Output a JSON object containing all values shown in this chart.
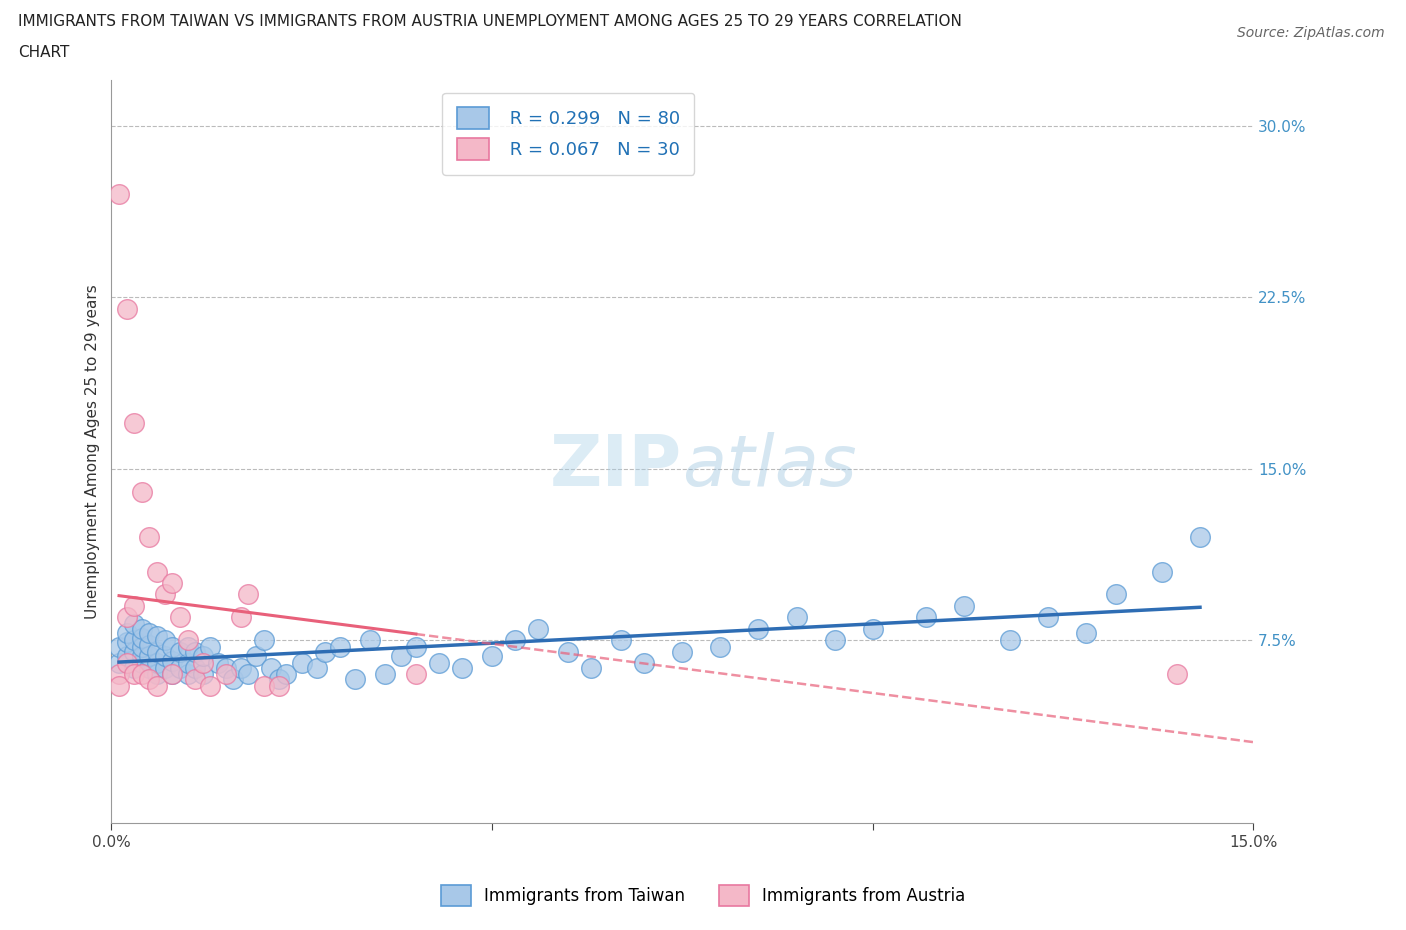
{
  "title_line1": "IMMIGRANTS FROM TAIWAN VS IMMIGRANTS FROM AUSTRIA UNEMPLOYMENT AMONG AGES 25 TO 29 YEARS CORRELATION",
  "title_line2": "CHART",
  "source_text": "Source: ZipAtlas.com",
  "ylabel": "Unemployment Among Ages 25 to 29 years",
  "xlabel_taiwan": "Immigrants from Taiwan",
  "xlabel_austria": "Immigrants from Austria",
  "watermark": "ZIPatlas",
  "taiwan_R": 0.299,
  "taiwan_N": 80,
  "austria_R": 0.067,
  "austria_N": 30,
  "xlim": [
    0.0,
    0.15
  ],
  "ylim": [
    -0.005,
    0.32
  ],
  "yticks_right": [
    0.075,
    0.15,
    0.225,
    0.3
  ],
  "ytick_labels_right": [
    "7.5%",
    "15.0%",
    "22.5%",
    "30.0%"
  ],
  "taiwan_color": "#a8c8e8",
  "taiwan_edge": "#5b9bd5",
  "austria_color": "#f4b8c8",
  "austria_edge": "#e878a0",
  "taiwan_line_color": "#2e6db4",
  "austria_line_color": "#e8607a",
  "background_color": "#ffffff",
  "taiwan_x": [
    0.001,
    0.001,
    0.002,
    0.002,
    0.002,
    0.003,
    0.003,
    0.003,
    0.003,
    0.004,
    0.004,
    0.004,
    0.004,
    0.004,
    0.005,
    0.005,
    0.005,
    0.005,
    0.006,
    0.006,
    0.006,
    0.006,
    0.007,
    0.007,
    0.007,
    0.008,
    0.008,
    0.008,
    0.009,
    0.009,
    0.01,
    0.01,
    0.01,
    0.011,
    0.011,
    0.012,
    0.012,
    0.013,
    0.014,
    0.015,
    0.016,
    0.017,
    0.018,
    0.019,
    0.02,
    0.021,
    0.022,
    0.023,
    0.025,
    0.027,
    0.028,
    0.03,
    0.032,
    0.034,
    0.036,
    0.038,
    0.04,
    0.043,
    0.046,
    0.05,
    0.053,
    0.056,
    0.06,
    0.063,
    0.067,
    0.07,
    0.075,
    0.08,
    0.085,
    0.09,
    0.095,
    0.1,
    0.107,
    0.112,
    0.118,
    0.123,
    0.128,
    0.132,
    0.138,
    0.143
  ],
  "taiwan_y": [
    0.065,
    0.072,
    0.068,
    0.074,
    0.078,
    0.063,
    0.07,
    0.075,
    0.082,
    0.065,
    0.068,
    0.072,
    0.076,
    0.08,
    0.063,
    0.068,
    0.073,
    0.078,
    0.06,
    0.065,
    0.07,
    0.077,
    0.063,
    0.068,
    0.075,
    0.06,
    0.066,
    0.072,
    0.063,
    0.07,
    0.06,
    0.065,
    0.072,
    0.063,
    0.07,
    0.06,
    0.068,
    0.072,
    0.065,
    0.063,
    0.058,
    0.063,
    0.06,
    0.068,
    0.075,
    0.063,
    0.058,
    0.06,
    0.065,
    0.063,
    0.07,
    0.072,
    0.058,
    0.075,
    0.06,
    0.068,
    0.072,
    0.065,
    0.063,
    0.068,
    0.075,
    0.08,
    0.07,
    0.063,
    0.075,
    0.065,
    0.07,
    0.072,
    0.08,
    0.085,
    0.075,
    0.08,
    0.085,
    0.09,
    0.075,
    0.085,
    0.078,
    0.095,
    0.105,
    0.12
  ],
  "austria_x": [
    0.001,
    0.001,
    0.001,
    0.002,
    0.002,
    0.002,
    0.003,
    0.003,
    0.003,
    0.004,
    0.004,
    0.005,
    0.005,
    0.006,
    0.006,
    0.007,
    0.008,
    0.008,
    0.009,
    0.01,
    0.011,
    0.012,
    0.013,
    0.015,
    0.017,
    0.018,
    0.02,
    0.022,
    0.04,
    0.14
  ],
  "austria_y": [
    0.27,
    0.06,
    0.055,
    0.22,
    0.085,
    0.065,
    0.17,
    0.09,
    0.06,
    0.14,
    0.06,
    0.12,
    0.058,
    0.105,
    0.055,
    0.095,
    0.1,
    0.06,
    0.085,
    0.075,
    0.058,
    0.065,
    0.055,
    0.06,
    0.085,
    0.095,
    0.055,
    0.055,
    0.06,
    0.06
  ]
}
